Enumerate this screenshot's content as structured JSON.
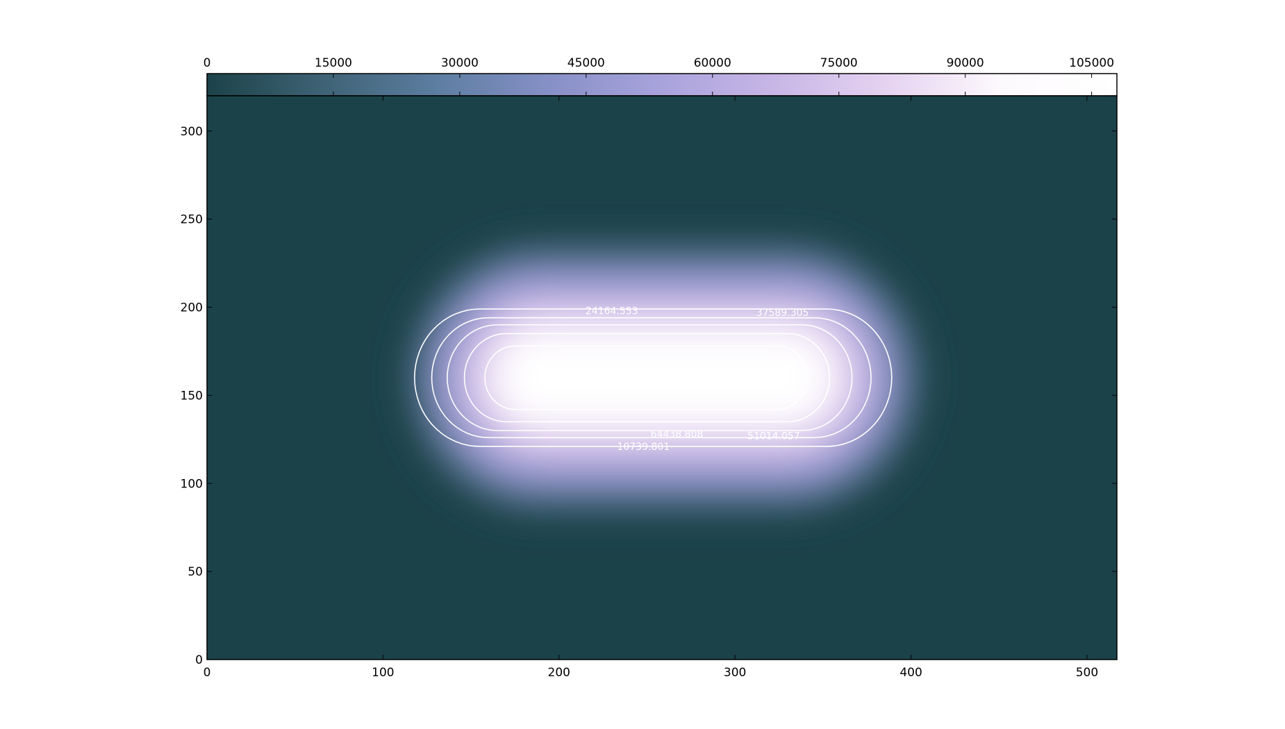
{
  "chart_data": {
    "type": "heatmap",
    "title": "",
    "xlabel": "",
    "ylabel": "",
    "xlim": [
      0,
      517
    ],
    "ylim": [
      0,
      320
    ],
    "x_ticks": [
      0,
      100,
      200,
      300,
      400,
      500
    ],
    "y_ticks": [
      0,
      50,
      100,
      150,
      200,
      250,
      300
    ],
    "grid": false,
    "field": {
      "shape": "stadium",
      "center": [
        280,
        160
      ],
      "plateau_x_range": [
        190,
        330
      ],
      "plateau_half_height": 18,
      "falloff": 38,
      "max_value": 108000,
      "background_value": 0
    },
    "colormap": {
      "name": "cubehelix-like",
      "stops": [
        "#1c4249",
        "#3e6274",
        "#5c7da0",
        "#8690c6",
        "#a9a3dc",
        "#c8b6e6",
        "#e6d3f1",
        "#fdfafd",
        "#ffffff"
      ]
    },
    "colorbar": {
      "position": "top",
      "range": [
        0,
        108000
      ],
      "ticks": [
        0,
        15000,
        30000,
        45000,
        60000,
        75000,
        90000,
        105000
      ],
      "tick_labels": [
        "0",
        "15000",
        "30000",
        "45000",
        "60000",
        "75000",
        "90000",
        "105000"
      ]
    },
    "contours": {
      "color": "#ffffff",
      "levels": [
        10739.801,
        24164.553,
        37589.305,
        51014.057,
        64438.808
      ],
      "labels": [
        {
          "text": "24164.553",
          "x": 230,
          "y": 198
        },
        {
          "text": "37589.305",
          "x": 327,
          "y": 197
        },
        {
          "text": "64438.808",
          "x": 267,
          "y": 128
        },
        {
          "text": "51014.057",
          "x": 322,
          "y": 127
        },
        {
          "text": "10739.801",
          "x": 248,
          "y": 121
        }
      ]
    }
  }
}
